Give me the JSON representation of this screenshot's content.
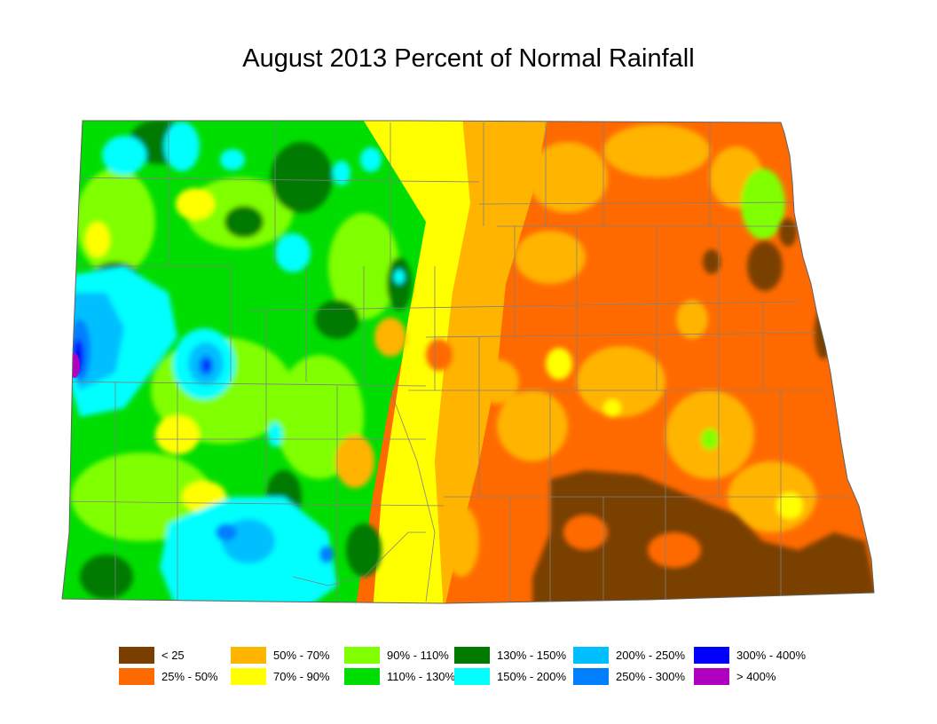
{
  "title": "August 2013 Percent of Normal Rainfall",
  "legend": [
    {
      "label": "< 25",
      "color": "#7a3f00"
    },
    {
      "label": "25% - 50%",
      "color": "#ff6a00"
    },
    {
      "label": "50% - 70%",
      "color": "#ffb400"
    },
    {
      "label": "70% - 90%",
      "color": "#ffff00"
    },
    {
      "label": "90% - 110%",
      "color": "#80ff00"
    },
    {
      "label": "110% - 130%",
      "color": "#00dd00"
    },
    {
      "label": "130% - 150%",
      "color": "#007a00"
    },
    {
      "label": "150% - 200%",
      "color": "#00ffff"
    },
    {
      "label": "200% - 250%",
      "color": "#00bfff"
    },
    {
      "label": "250% - 300%",
      "color": "#0080ff"
    },
    {
      "label": "300% - 400%",
      "color": "#0000ff"
    },
    {
      "label": "> 400%",
      "color": "#b000c0"
    }
  ]
}
